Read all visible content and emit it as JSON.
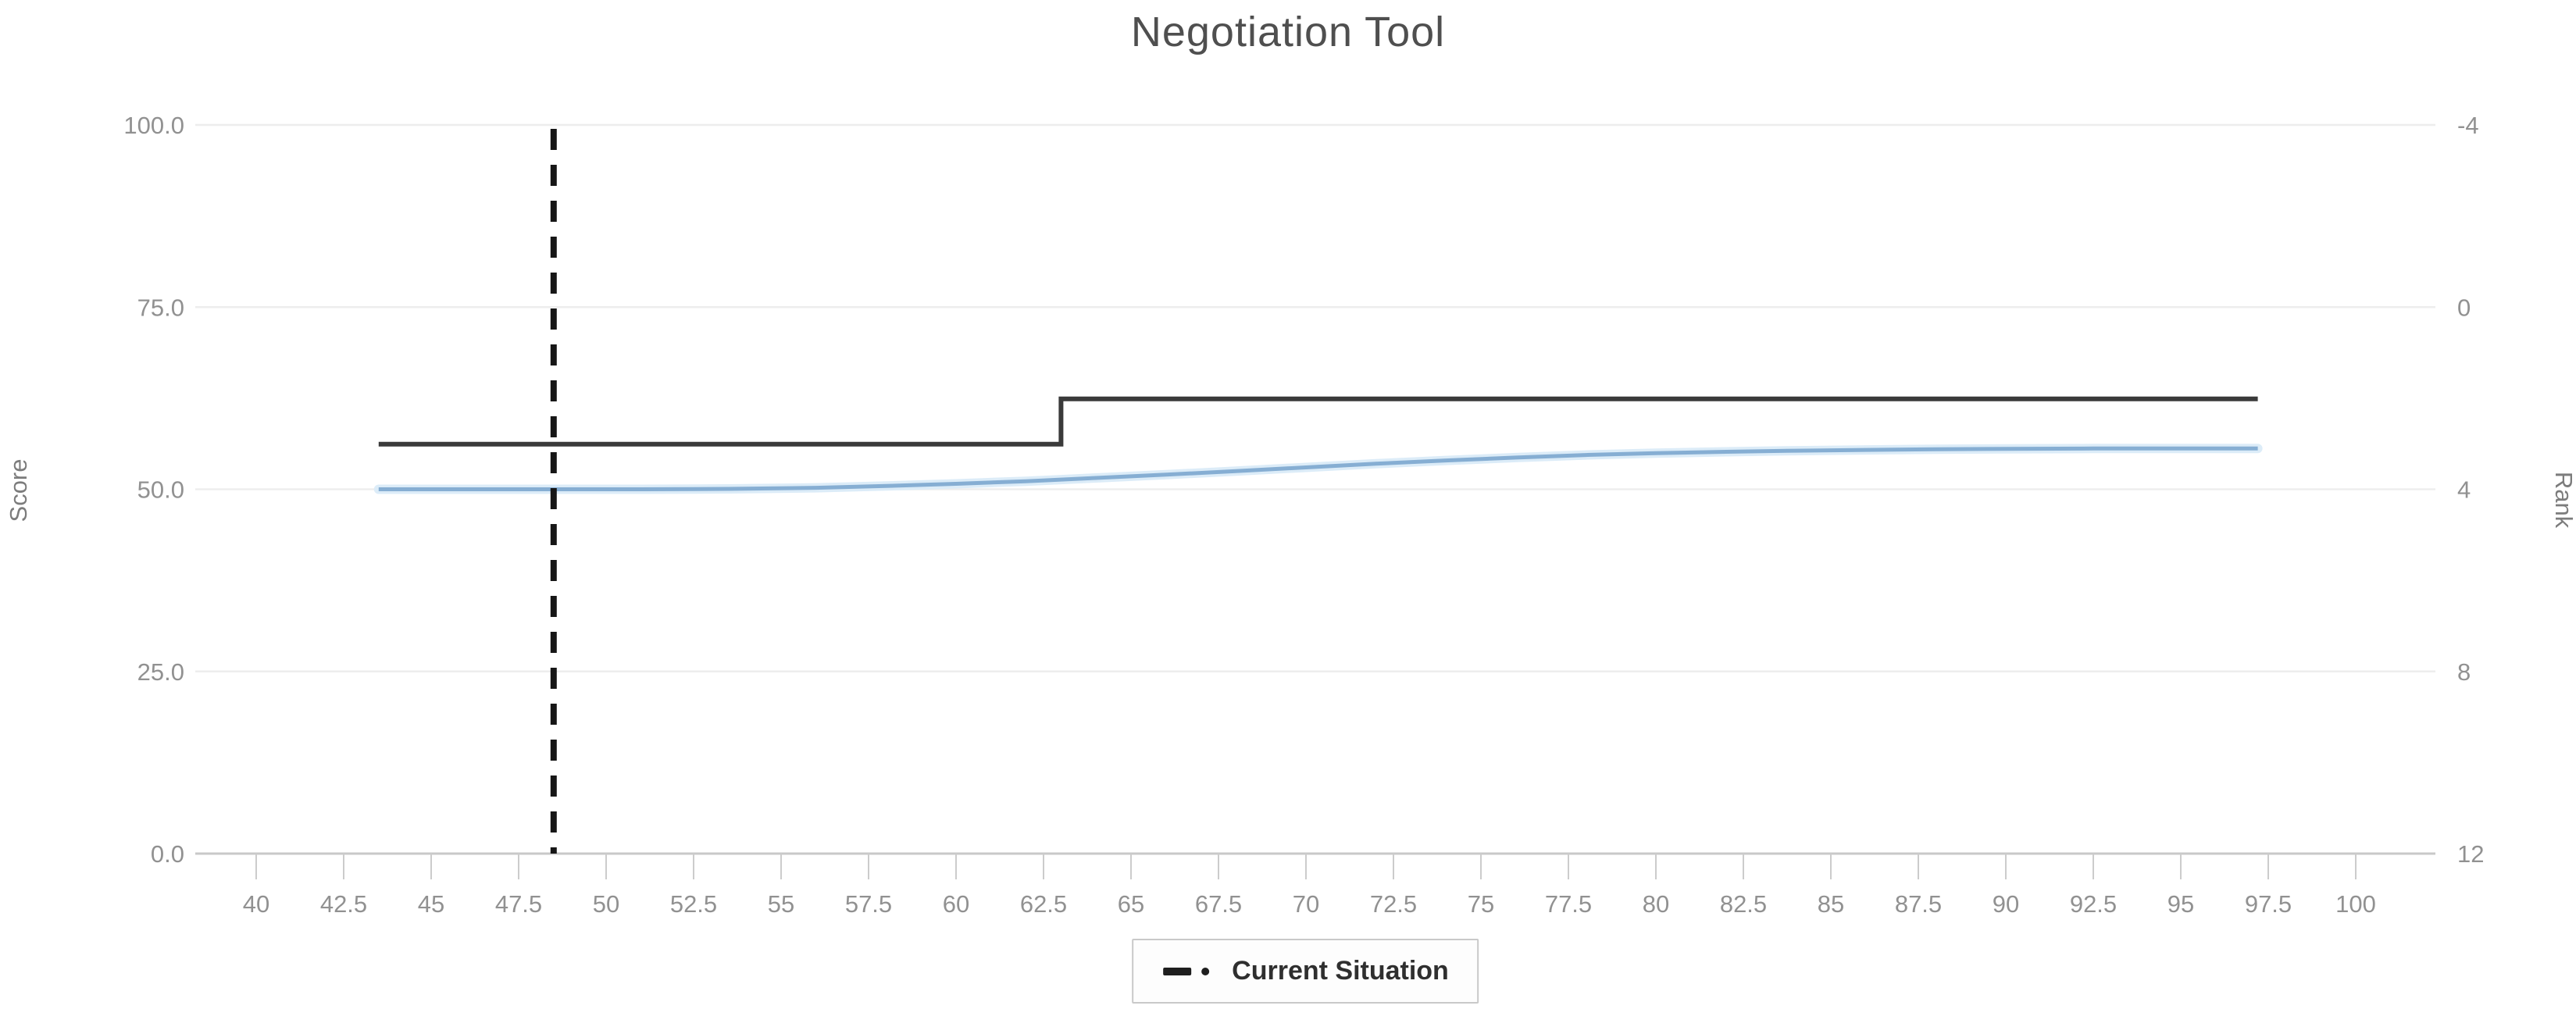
{
  "title": "Negotiation Tool",
  "chart_data": {
    "type": "line",
    "title": "Negotiation Tool",
    "xlabel": "",
    "x_axis": {
      "range": [
        38.3,
        102.2
      ],
      "ticks": [
        40,
        42.5,
        45,
        47.5,
        50,
        52.5,
        55,
        57.5,
        60,
        62.5,
        65,
        67.5,
        70,
        72.5,
        75,
        77.5,
        80,
        82.5,
        85,
        87.5,
        90,
        92.5,
        95,
        97.5,
        100
      ]
    },
    "y_axis_left": {
      "label": "Score",
      "range": [
        0,
        100
      ],
      "ticks": [
        0,
        25,
        50,
        75,
        100
      ]
    },
    "y_axis_right": {
      "label": "Rank",
      "range": [
        12,
        -4
      ],
      "ticks": [
        12,
        8,
        4,
        0,
        -4
      ]
    },
    "gridlines": [
      {
        "score": 0,
        "left_label": "0.0",
        "right_label": "12"
      },
      {
        "score": 25,
        "left_label": "25.0",
        "right_label": "8"
      },
      {
        "score": 50,
        "left_label": "50.0",
        "right_label": "4"
      },
      {
        "score": 75,
        "left_label": "75.0",
        "right_label": "0"
      },
      {
        "score": 100,
        "left_label": "100.0",
        "right_label": "-4"
      }
    ],
    "grid": true,
    "legend_position": "bottom",
    "series": [
      {
        "id": "step-line",
        "color": "#3a3a3a",
        "stroke_width": 6,
        "shape": "step",
        "points": [
          [
            43.5,
            56.2
          ],
          [
            63,
            56.2
          ],
          [
            63,
            62.4
          ],
          [
            97.2,
            62.4
          ]
        ]
      },
      {
        "id": "smooth-line",
        "color": "#86aed3",
        "halo_color": "#dcecf8",
        "stroke_width": 5,
        "shape": "smooth",
        "points": [
          [
            43.5,
            50.0
          ],
          [
            46,
            50.0
          ],
          [
            48.5,
            50.0
          ],
          [
            51,
            50.0
          ],
          [
            53.5,
            50.05
          ],
          [
            56,
            50.2
          ],
          [
            58,
            50.45
          ],
          [
            60,
            50.75
          ],
          [
            62,
            51.1
          ],
          [
            64,
            51.55
          ],
          [
            66,
            52.0
          ],
          [
            68,
            52.5
          ],
          [
            70,
            53.0
          ],
          [
            72,
            53.5
          ],
          [
            74,
            53.95
          ],
          [
            76,
            54.35
          ],
          [
            78,
            54.7
          ],
          [
            80,
            54.95
          ],
          [
            82,
            55.15
          ],
          [
            84,
            55.3
          ],
          [
            86,
            55.4
          ],
          [
            88,
            55.5
          ],
          [
            90,
            55.55
          ],
          [
            92.5,
            55.6
          ],
          [
            95,
            55.6
          ],
          [
            97.2,
            55.6
          ]
        ]
      }
    ],
    "annotations": [
      {
        "id": "current-situation",
        "type": "vertical-dashed-line",
        "x": 48.5,
        "color": "#161616"
      }
    ],
    "legend": [
      {
        "label": "Current Situation",
        "marker": "dash-dot",
        "color": "#1e1e1e"
      }
    ]
  }
}
